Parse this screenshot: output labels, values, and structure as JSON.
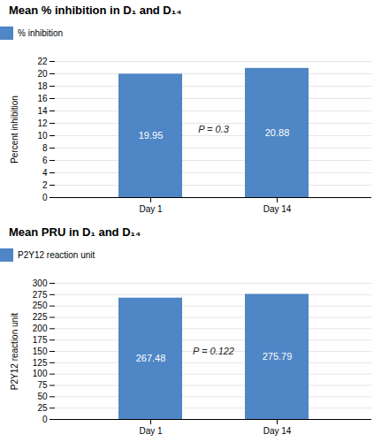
{
  "chart_data": [
    {
      "type": "bar",
      "title": "Mean % inhibition in D₁ and D₁₄",
      "categories": [
        "Day 1",
        "Day 14"
      ],
      "series": [
        {
          "name": "% inhibition",
          "color": "#4f86c6",
          "values": [
            19.95,
            20.88
          ]
        }
      ],
      "ylabel": "Percent inhibition",
      "ylim": [
        0,
        22
      ],
      "yticks": [
        0,
        2,
        4,
        6,
        8,
        10,
        12,
        14,
        16,
        18,
        20,
        22
      ],
      "grid": true,
      "data_labels": true,
      "legend": "right",
      "annotations": [
        "P = 0.3"
      ]
    },
    {
      "type": "bar",
      "title": "Mean PRU in D₁ and D₁₄",
      "categories": [
        "Day 1",
        "Day 14"
      ],
      "series": [
        {
          "name": "P2Y12 reaction unit",
          "color": "#4f86c6",
          "values": [
            267.48,
            275.79
          ]
        }
      ],
      "ylabel": "P2Y12 reaction unit",
      "ylim": [
        0,
        300
      ],
      "yticks": [
        0,
        25,
        50,
        75,
        100,
        125,
        150,
        175,
        200,
        225,
        250,
        275,
        300
      ],
      "grid": true,
      "data_labels": true,
      "legend": "right",
      "annotations": [
        "P = 0.122"
      ]
    }
  ]
}
